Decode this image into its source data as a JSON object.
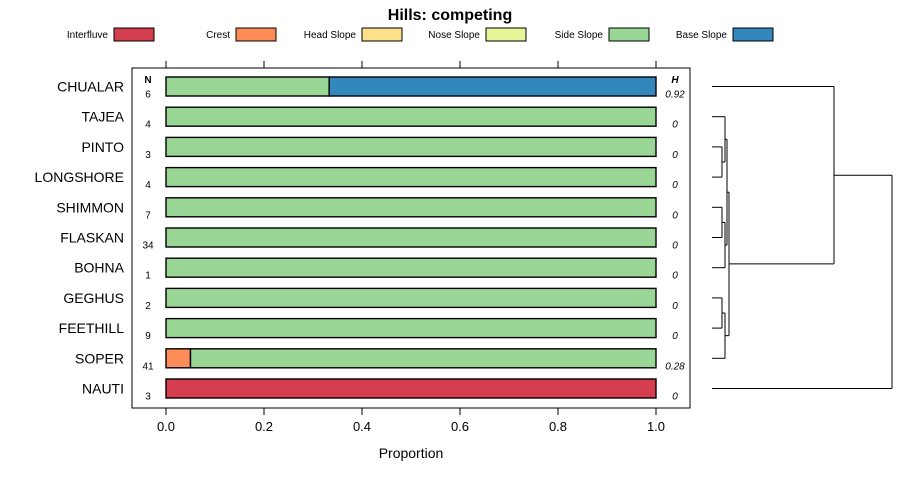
{
  "chart_data": {
    "type": "bar",
    "orientation": "horizontal",
    "stacked": true,
    "title": "Hills: competing",
    "xlabel": "Proportion",
    "xlim": [
      0,
      1
    ],
    "xticks": [
      "0.0",
      "0.2",
      "0.4",
      "0.6",
      "0.8",
      "1.0"
    ],
    "n_header": "N",
    "h_header": "H",
    "legend": [
      {
        "name": "Interfluve",
        "color": "#D53E4F"
      },
      {
        "name": "Crest",
        "color": "#FC8D59"
      },
      {
        "name": "Head Slope",
        "color": "#FEE08B"
      },
      {
        "name": "Nose Slope",
        "color": "#E6F598"
      },
      {
        "name": "Side Slope",
        "color": "#99D594"
      },
      {
        "name": "Base Slope",
        "color": "#3288BD"
      }
    ],
    "categories": [
      "CHUALAR",
      "TAJEA",
      "PINTO",
      "LONGSHORE",
      "SHIMMON",
      "FLASKAN",
      "BOHNA",
      "GEGHUS",
      "FEETHILL",
      "SOPER",
      "NAUTI"
    ],
    "n": [
      "6",
      "4",
      "3",
      "4",
      "7",
      "34",
      "1",
      "2",
      "9",
      "41",
      "3"
    ],
    "h": [
      "0.92",
      "0",
      "0",
      "0",
      "0",
      "0",
      "0",
      "0",
      "0",
      "0.28",
      "0"
    ],
    "series": [
      {
        "name": "Interfluve",
        "values": [
          0,
          0,
          0,
          0,
          0,
          0,
          0,
          0,
          0,
          0,
          1
        ]
      },
      {
        "name": "Crest",
        "values": [
          0,
          0,
          0,
          0,
          0,
          0,
          0,
          0,
          0,
          0.05,
          0
        ]
      },
      {
        "name": "Head Slope",
        "values": [
          0,
          0,
          0,
          0,
          0,
          0,
          0,
          0,
          0,
          0,
          0
        ]
      },
      {
        "name": "Nose Slope",
        "values": [
          0,
          0,
          0,
          0,
          0,
          0,
          0,
          0,
          0,
          0,
          0
        ]
      },
      {
        "name": "Side Slope",
        "values": [
          0.333,
          1,
          1,
          1,
          1,
          1,
          1,
          1,
          1,
          0.95,
          0
        ]
      },
      {
        "name": "Base Slope",
        "values": [
          0.667,
          0,
          0,
          0,
          0,
          0,
          0,
          0,
          0,
          0,
          0
        ]
      }
    ],
    "dendrogram": "hierarchical clustering of categories"
  }
}
